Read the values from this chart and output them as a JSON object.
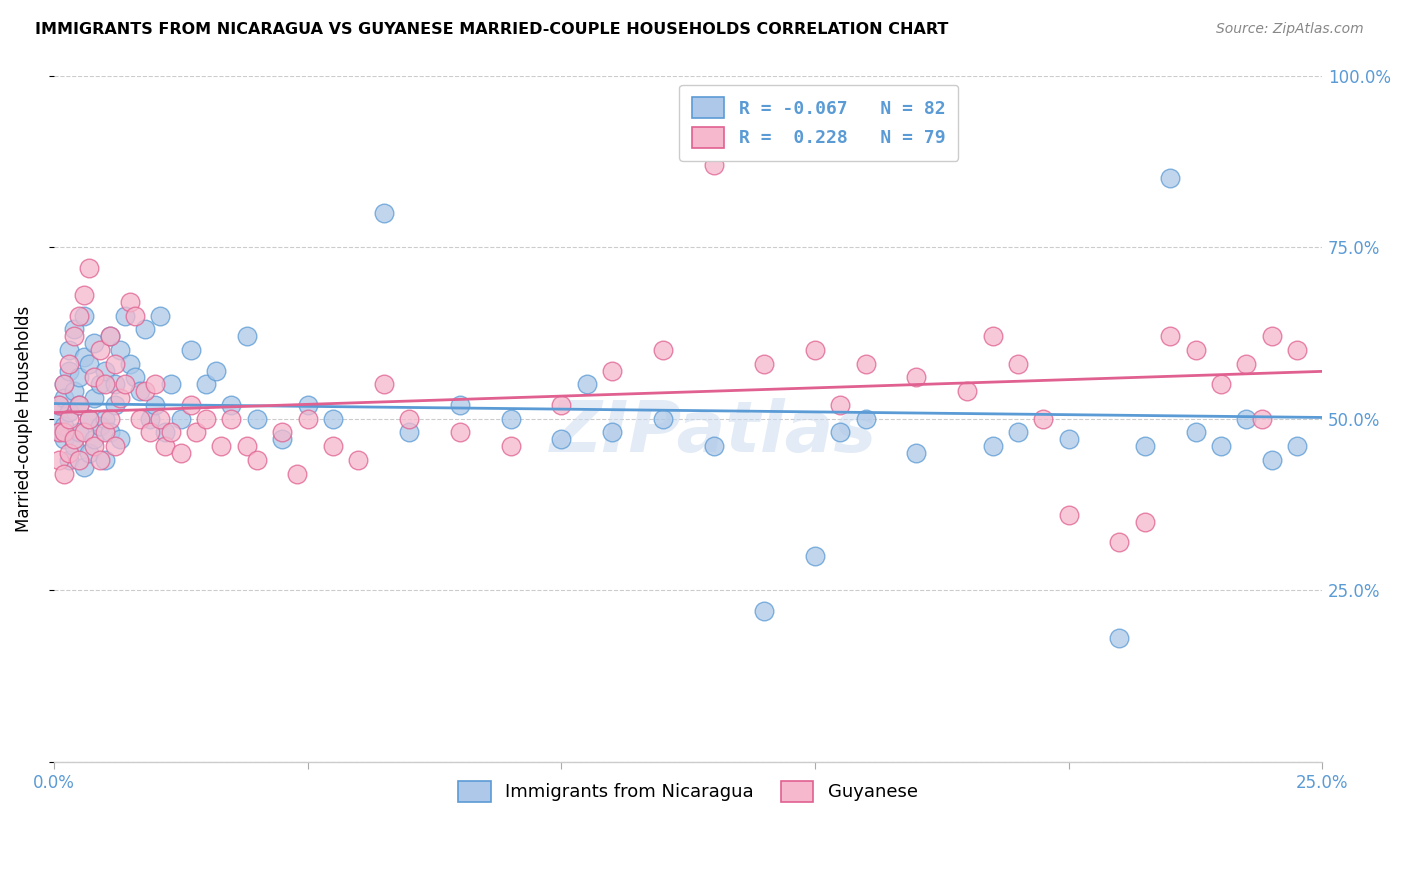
{
  "title": "IMMIGRANTS FROM NICARAGUA VS GUYANESE MARRIED-COUPLE HOUSEHOLDS CORRELATION CHART",
  "source": "Source: ZipAtlas.com",
  "ylabel": "Married-couple Households",
  "ytick_positions": [
    0.0,
    0.25,
    0.5,
    0.75,
    1.0
  ],
  "ytick_labels": [
    "",
    "25.0%",
    "50.0%",
    "75.0%",
    "100.0%"
  ],
  "xtick_positions": [
    0.0,
    0.05,
    0.1,
    0.15,
    0.2,
    0.25
  ],
  "xtick_labels": [
    "0.0%",
    "",
    "",
    "",
    "",
    "25.0%"
  ],
  "color_blue_fill": "#adc8e8",
  "color_blue_edge": "#5b9bd5",
  "color_pink_fill": "#f5b8cc",
  "color_pink_edge": "#e06090",
  "line_color_blue": "#5b9bd5",
  "line_color_pink": "#e06090",
  "watermark": "ZIPatlas",
  "legend_blue_label": "R = -0.067   N = 82",
  "legend_pink_label": "R =  0.228   N = 79",
  "bottom_legend_blue": "Immigrants from Nicaragua",
  "bottom_legend_pink": "Guyanese",
  "blue_R": -0.067,
  "pink_R": 0.228,
  "blue_N": 82,
  "pink_N": 79,
  "blue_x": [
    0.001,
    0.001,
    0.001,
    0.002,
    0.002,
    0.002,
    0.002,
    0.003,
    0.003,
    0.003,
    0.003,
    0.004,
    0.004,
    0.004,
    0.005,
    0.005,
    0.005,
    0.006,
    0.006,
    0.006,
    0.007,
    0.007,
    0.007,
    0.008,
    0.008,
    0.008,
    0.009,
    0.009,
    0.01,
    0.01,
    0.01,
    0.011,
    0.011,
    0.012,
    0.012,
    0.013,
    0.013,
    0.014,
    0.015,
    0.016,
    0.017,
    0.018,
    0.019,
    0.02,
    0.021,
    0.022,
    0.023,
    0.025,
    0.027,
    0.03,
    0.032,
    0.035,
    0.038,
    0.04,
    0.045,
    0.05,
    0.055,
    0.065,
    0.07,
    0.08,
    0.09,
    0.1,
    0.105,
    0.11,
    0.12,
    0.13,
    0.14,
    0.15,
    0.155,
    0.16,
    0.17,
    0.185,
    0.19,
    0.2,
    0.21,
    0.215,
    0.22,
    0.225,
    0.23,
    0.235,
    0.24,
    0.245
  ],
  "blue_y": [
    0.5,
    0.48,
    0.52,
    0.55,
    0.47,
    0.53,
    0.49,
    0.57,
    0.44,
    0.51,
    0.6,
    0.46,
    0.54,
    0.63,
    0.48,
    0.56,
    0.52,
    0.59,
    0.43,
    0.65,
    0.5,
    0.58,
    0.45,
    0.53,
    0.47,
    0.61,
    0.55,
    0.49,
    0.5,
    0.57,
    0.44,
    0.62,
    0.48,
    0.55,
    0.52,
    0.6,
    0.47,
    0.65,
    0.58,
    0.56,
    0.54,
    0.63,
    0.5,
    0.52,
    0.65,
    0.48,
    0.55,
    0.5,
    0.6,
    0.55,
    0.57,
    0.52,
    0.62,
    0.5,
    0.47,
    0.52,
    0.5,
    0.8,
    0.48,
    0.52,
    0.5,
    0.47,
    0.55,
    0.48,
    0.5,
    0.46,
    0.22,
    0.3,
    0.48,
    0.5,
    0.45,
    0.46,
    0.48,
    0.47,
    0.18,
    0.46,
    0.85,
    0.48,
    0.46,
    0.5,
    0.44,
    0.46
  ],
  "pink_x": [
    0.001,
    0.001,
    0.001,
    0.002,
    0.002,
    0.002,
    0.003,
    0.003,
    0.003,
    0.004,
    0.004,
    0.005,
    0.005,
    0.005,
    0.006,
    0.006,
    0.007,
    0.007,
    0.008,
    0.008,
    0.009,
    0.009,
    0.01,
    0.01,
    0.011,
    0.011,
    0.012,
    0.012,
    0.013,
    0.014,
    0.015,
    0.016,
    0.017,
    0.018,
    0.019,
    0.02,
    0.021,
    0.022,
    0.023,
    0.025,
    0.027,
    0.028,
    0.03,
    0.033,
    0.035,
    0.038,
    0.04,
    0.045,
    0.048,
    0.05,
    0.055,
    0.06,
    0.065,
    0.07,
    0.08,
    0.09,
    0.1,
    0.11,
    0.12,
    0.13,
    0.14,
    0.15,
    0.155,
    0.16,
    0.17,
    0.18,
    0.185,
    0.19,
    0.195,
    0.2,
    0.21,
    0.215,
    0.22,
    0.225,
    0.23,
    0.235,
    0.238,
    0.24,
    0.245
  ],
  "pink_y": [
    0.48,
    0.44,
    0.52,
    0.55,
    0.48,
    0.42,
    0.58,
    0.5,
    0.45,
    0.62,
    0.47,
    0.65,
    0.52,
    0.44,
    0.68,
    0.48,
    0.72,
    0.5,
    0.56,
    0.46,
    0.6,
    0.44,
    0.55,
    0.48,
    0.62,
    0.5,
    0.58,
    0.46,
    0.53,
    0.55,
    0.67,
    0.65,
    0.5,
    0.54,
    0.48,
    0.55,
    0.5,
    0.46,
    0.48,
    0.45,
    0.52,
    0.48,
    0.5,
    0.46,
    0.5,
    0.46,
    0.44,
    0.48,
    0.42,
    0.5,
    0.46,
    0.44,
    0.55,
    0.5,
    0.48,
    0.46,
    0.52,
    0.57,
    0.6,
    0.87,
    0.58,
    0.6,
    0.52,
    0.58,
    0.56,
    0.54,
    0.62,
    0.58,
    0.5,
    0.36,
    0.32,
    0.35,
    0.62,
    0.6,
    0.55,
    0.58,
    0.5,
    0.62,
    0.6
  ]
}
